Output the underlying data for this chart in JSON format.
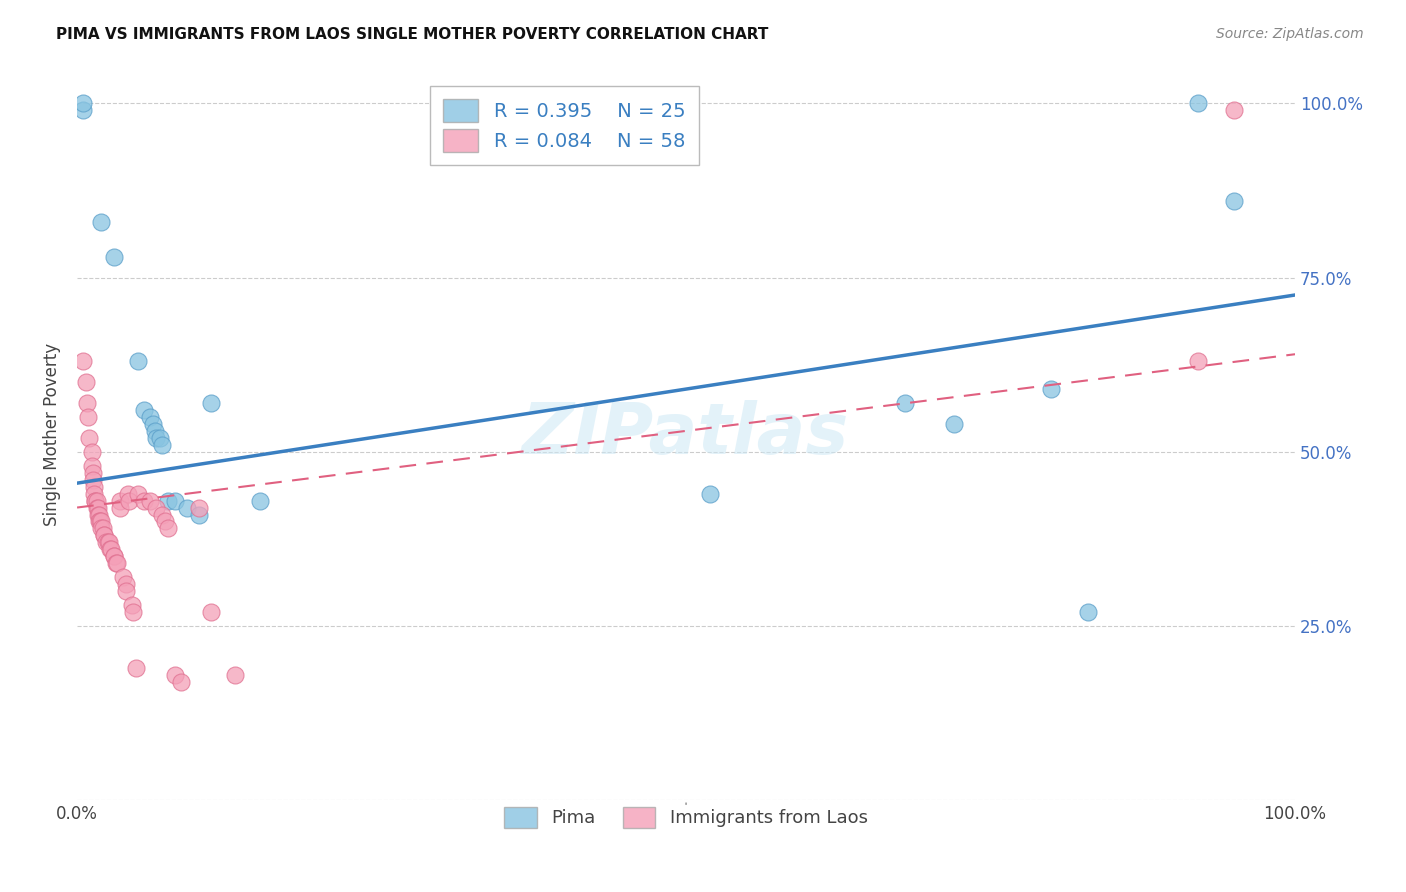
{
  "title": "PIMA VS IMMIGRANTS FROM LAOS SINGLE MOTHER POVERTY CORRELATION CHART",
  "source": "Source: ZipAtlas.com",
  "ylabel": "Single Mother Poverty",
  "xlim": [
    0.0,
    1.0
  ],
  "ylim": [
    0.0,
    1.05
  ],
  "legend_r1": "R = 0.395",
  "legend_n1": "N = 25",
  "legend_r2": "R = 0.084",
  "legend_n2": "N = 58",
  "pima_color": "#89c4e1",
  "laos_color": "#f4a0b8",
  "pima_edge_color": "#5a9ec9",
  "laos_edge_color": "#e07090",
  "pima_line_color": "#3a7fc1",
  "laos_line_color": "#e06080",
  "watermark": "ZIPatlas",
  "background_color": "#ffffff",
  "pima_points": [
    [
      0.005,
      0.99
    ],
    [
      0.005,
      1.0
    ],
    [
      0.02,
      0.83
    ],
    [
      0.03,
      0.78
    ],
    [
      0.05,
      0.63
    ],
    [
      0.055,
      0.56
    ],
    [
      0.06,
      0.55
    ],
    [
      0.062,
      0.54
    ],
    [
      0.064,
      0.53
    ],
    [
      0.065,
      0.52
    ],
    [
      0.068,
      0.52
    ],
    [
      0.07,
      0.51
    ],
    [
      0.075,
      0.43
    ],
    [
      0.08,
      0.43
    ],
    [
      0.09,
      0.42
    ],
    [
      0.1,
      0.41
    ],
    [
      0.11,
      0.57
    ],
    [
      0.15,
      0.43
    ],
    [
      0.52,
      0.44
    ],
    [
      0.68,
      0.57
    ],
    [
      0.72,
      0.54
    ],
    [
      0.8,
      0.59
    ],
    [
      0.83,
      0.27
    ],
    [
      0.92,
      1.0
    ],
    [
      0.95,
      0.86
    ]
  ],
  "laos_points": [
    [
      0.005,
      0.63
    ],
    [
      0.007,
      0.6
    ],
    [
      0.008,
      0.57
    ],
    [
      0.009,
      0.55
    ],
    [
      0.01,
      0.52
    ],
    [
      0.012,
      0.5
    ],
    [
      0.012,
      0.48
    ],
    [
      0.013,
      0.47
    ],
    [
      0.013,
      0.46
    ],
    [
      0.014,
      0.45
    ],
    [
      0.014,
      0.44
    ],
    [
      0.015,
      0.43
    ],
    [
      0.015,
      0.43
    ],
    [
      0.016,
      0.43
    ],
    [
      0.016,
      0.42
    ],
    [
      0.017,
      0.42
    ],
    [
      0.017,
      0.41
    ],
    [
      0.018,
      0.41
    ],
    [
      0.018,
      0.4
    ],
    [
      0.019,
      0.4
    ],
    [
      0.02,
      0.4
    ],
    [
      0.02,
      0.39
    ],
    [
      0.021,
      0.39
    ],
    [
      0.022,
      0.38
    ],
    [
      0.022,
      0.38
    ],
    [
      0.024,
      0.37
    ],
    [
      0.025,
      0.37
    ],
    [
      0.026,
      0.37
    ],
    [
      0.027,
      0.36
    ],
    [
      0.028,
      0.36
    ],
    [
      0.03,
      0.35
    ],
    [
      0.03,
      0.35
    ],
    [
      0.032,
      0.34
    ],
    [
      0.033,
      0.34
    ],
    [
      0.035,
      0.43
    ],
    [
      0.035,
      0.42
    ],
    [
      0.038,
      0.32
    ],
    [
      0.04,
      0.31
    ],
    [
      0.04,
      0.3
    ],
    [
      0.042,
      0.44
    ],
    [
      0.043,
      0.43
    ],
    [
      0.045,
      0.28
    ],
    [
      0.046,
      0.27
    ],
    [
      0.048,
      0.19
    ],
    [
      0.05,
      0.44
    ],
    [
      0.055,
      0.43
    ],
    [
      0.06,
      0.43
    ],
    [
      0.065,
      0.42
    ],
    [
      0.07,
      0.41
    ],
    [
      0.072,
      0.4
    ],
    [
      0.075,
      0.39
    ],
    [
      0.08,
      0.18
    ],
    [
      0.085,
      0.17
    ],
    [
      0.1,
      0.42
    ],
    [
      0.11,
      0.27
    ],
    [
      0.13,
      0.18
    ],
    [
      0.92,
      0.63
    ],
    [
      0.95,
      0.99
    ]
  ]
}
